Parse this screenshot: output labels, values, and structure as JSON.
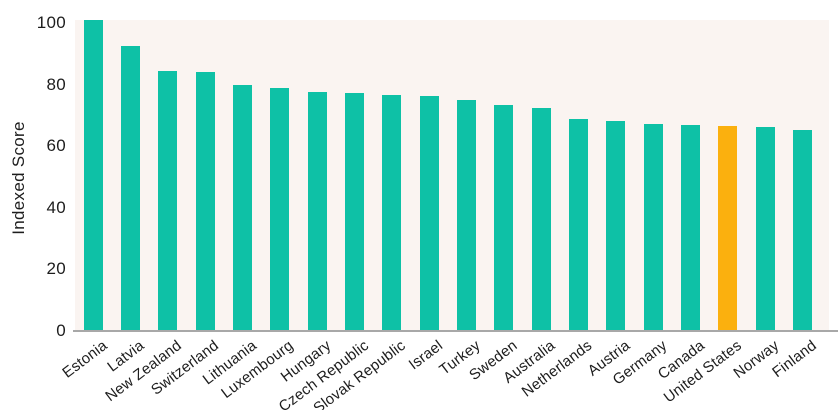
{
  "page": {
    "background": "#ffffff"
  },
  "chart_data": {
    "type": "bar",
    "title": "",
    "ylabel": "Indexed Score",
    "xlabel": "",
    "ylim": [
      0,
      101
    ],
    "yticks": [
      0,
      20,
      40,
      60,
      80,
      100
    ],
    "grid": false,
    "legend": "none",
    "plot_background": "#faf4f1",
    "bar_color": "#0ec1a6",
    "highlight_color": "#fbb00e",
    "axis_line_color": "#a8a8a8",
    "text_color": "#1d1d1d",
    "highlight_category": "United States",
    "categories": [
      "Estonia",
      "Latvia",
      "New Zealand",
      "Switzerland",
      "Lithuania",
      "Luxembourg",
      "Hungary",
      "Czech Republic",
      "Slovak Republic",
      "Israel",
      "Turkey",
      "Sweden",
      "Australia",
      "Netherlands",
      "Austria",
      "Germany",
      "Canada",
      "United States",
      "Norway",
      "Finland"
    ],
    "values": [
      101,
      92.5,
      84.5,
      84,
      80,
      79,
      77.7,
      77.4,
      76.8,
      76.4,
      75,
      73.5,
      72.5,
      68.7,
      68.2,
      67.1,
      67,
      66.7,
      66.3,
      65.4
    ]
  }
}
